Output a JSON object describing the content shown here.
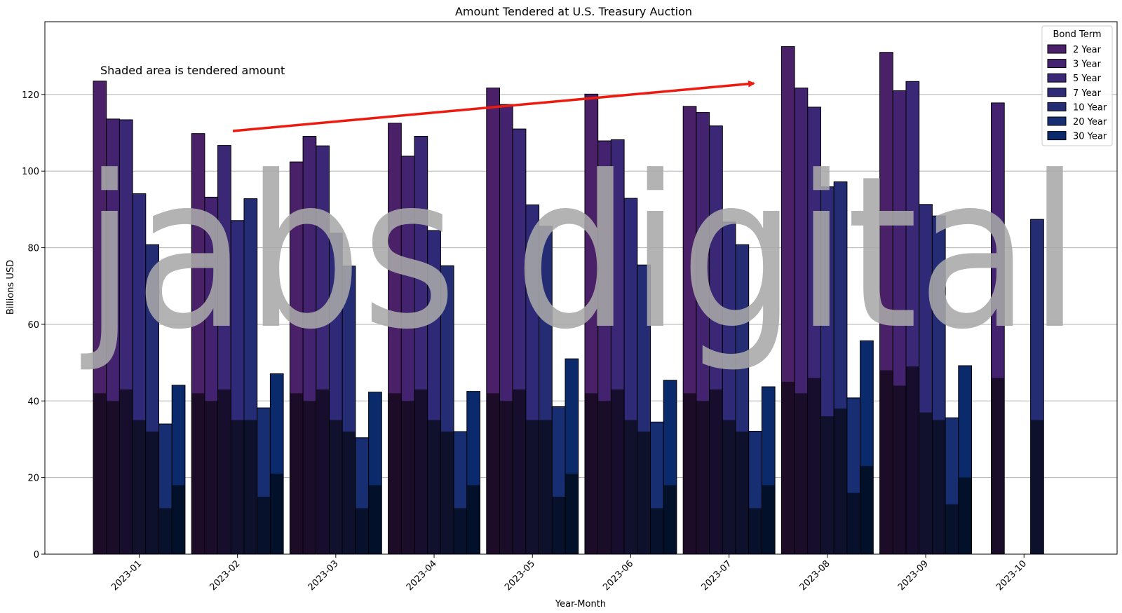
{
  "chart_data": {
    "type": "bar",
    "title": "Amount Tendered at U.S. Treasury Auction",
    "xlabel": "Year-Month",
    "ylabel": "Billions USD",
    "ylim": [
      0,
      139
    ],
    "yticks": [
      0,
      20,
      40,
      60,
      80,
      100,
      120
    ],
    "grid": "horizontal",
    "legend_title": "Bond Term",
    "legend_position": "top-right",
    "annotation": "Shaded area is tendered amount",
    "watermark": "jabs digital",
    "categories": [
      "2023-01",
      "2023-02",
      "2023-03",
      "2023-04",
      "2023-05",
      "2023-06",
      "2023-07",
      "2023-08",
      "2023-09",
      "2023-10"
    ],
    "series": [
      {
        "name": "2 Year",
        "color": "#4a2068",
        "tendered": [
          123.5,
          109.8,
          102.4,
          112.5,
          121.7,
          120.1,
          116.9,
          132.5,
          131.0,
          0
        ],
        "accepted": [
          42,
          42,
          42,
          42,
          42,
          42,
          42,
          45,
          48,
          0
        ]
      },
      {
        "name": "3 Year",
        "color": "#432270",
        "tendered": [
          113.6,
          93.2,
          109.1,
          103.9,
          117.4,
          107.9,
          115.3,
          121.7,
          121.0,
          117.8
        ],
        "accepted": [
          40,
          40,
          40,
          40,
          40,
          40,
          40,
          42,
          44,
          46
        ]
      },
      {
        "name": "5 Year",
        "color": "#3a2775",
        "tendered": [
          113.4,
          106.7,
          106.6,
          109.1,
          111.0,
          108.2,
          111.8,
          116.7,
          123.4,
          0
        ],
        "accepted": [
          43,
          43,
          43,
          43,
          43,
          43,
          43,
          46,
          49,
          0
        ]
      },
      {
        "name": "7 Year",
        "color": "#2f2a78",
        "tendered": [
          94.1,
          87.1,
          83.8,
          84.5,
          91.2,
          92.9,
          86.7,
          95.9,
          91.3,
          0
        ],
        "accepted": [
          35,
          35,
          35,
          35,
          35,
          35,
          35,
          36,
          37,
          0
        ]
      },
      {
        "name": "10 Year",
        "color": "#242d74",
        "tendered": [
          80.8,
          92.8,
          75.2,
          75.3,
          85.6,
          75.5,
          80.8,
          97.2,
          88.3,
          87.4
        ],
        "accepted": [
          32,
          35,
          32,
          32,
          35,
          32,
          32,
          38,
          35,
          35
        ]
      },
      {
        "name": "20 Year",
        "color": "#172f72",
        "tendered": [
          34.0,
          38.2,
          30.4,
          32.0,
          38.5,
          34.5,
          32.1,
          40.8,
          35.6,
          0
        ],
        "accepted": [
          12,
          15,
          12,
          12,
          15,
          12,
          12,
          16,
          13,
          0
        ]
      },
      {
        "name": "30 Year",
        "color": "#0a2a6c",
        "tendered": [
          44.1,
          47.1,
          42.3,
          42.5,
          51.0,
          45.4,
          43.7,
          55.7,
          49.2,
          0
        ],
        "accepted": [
          18,
          21,
          18,
          18,
          21,
          18,
          18,
          23,
          20,
          0
        ]
      }
    ]
  }
}
